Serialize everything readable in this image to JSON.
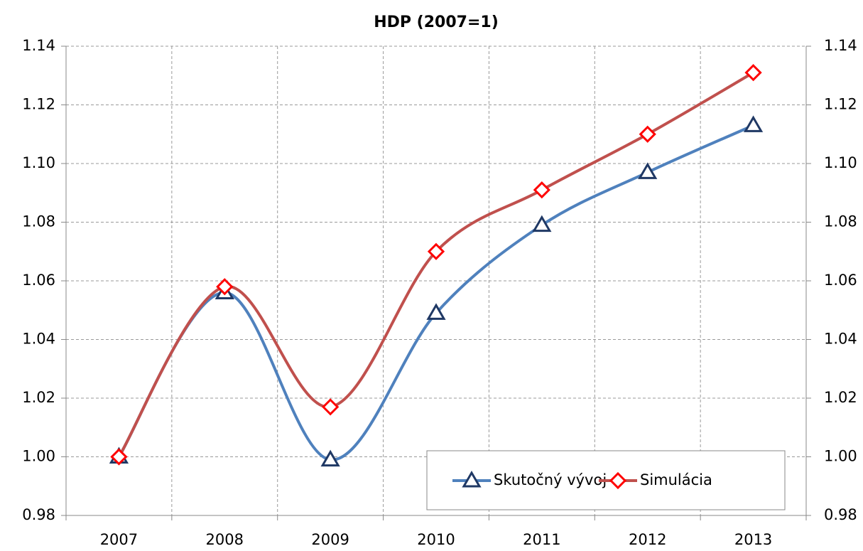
{
  "chart_data": {
    "type": "line",
    "title": "HDP (2007=1)",
    "categories": [
      "2007",
      "2008",
      "2009",
      "2010",
      "2011",
      "2012",
      "2013"
    ],
    "series": [
      {
        "name": "Skutočný vývoj",
        "color": "#4f81bd",
        "marker_color": "#1f3864",
        "marker": "triangle",
        "values": [
          1.0,
          1.056,
          0.999,
          1.049,
          1.079,
          1.097,
          1.113
        ]
      },
      {
        "name": "Simulácia",
        "color": "#c0504d",
        "marker_color": "#ff0000",
        "marker": "diamond",
        "values": [
          1.0,
          1.058,
          1.017,
          1.07,
          1.091,
          1.11,
          1.131
        ]
      }
    ],
    "ylim": [
      0.98,
      1.14
    ],
    "yticks": [
      0.98,
      {
        "value": 1,
        "label": "1.00"
      },
      1.02,
      1.04,
      1.06,
      1.08,
      {
        "value": 1.1,
        "label": "1.10"
      },
      1.12,
      1.14
    ],
    "y2lim": [
      0.98,
      1.14
    ],
    "y2ticks": [
      0.98,
      {
        "value": 1,
        "label": "1.00"
      },
      1.02,
      1.04,
      1.06,
      1.08,
      {
        "value": 1.1,
        "label": "1.10"
      },
      1.12,
      1.14
    ],
    "grid": true,
    "smooth": true,
    "legend": "bottom-right"
  }
}
